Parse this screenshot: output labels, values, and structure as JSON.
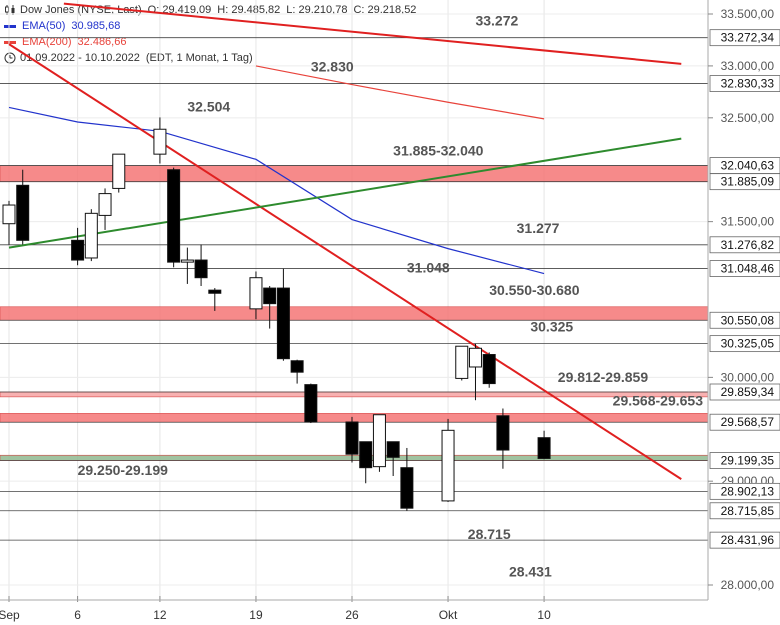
{
  "header": {
    "instrument": "Dow Jones (NYSE, Last)",
    "ohlc": {
      "o": "O: 29.419,09",
      "h": "H: 29.485,82",
      "l": "L: 29.210,78",
      "c": "C: 29.218,52"
    },
    "ema50": {
      "label": "EMA(50)",
      "value": "30.985,68",
      "color": "#2233cc"
    },
    "ema200": {
      "label": "EMA(200)",
      "value": "32.486,66",
      "color": "#e8433b"
    },
    "period": "01.09.2022 - 10.10.2022",
    "resolution": "(EDT, 1 Monat, 1 Tag)"
  },
  "chart_data": {
    "type": "candlestick",
    "ylim": [
      27800,
      33600
    ],
    "y_ticks": [
      {
        "value": 33500,
        "label": "33.500,00"
      },
      {
        "value": 33000,
        "label": "33.000,00"
      },
      {
        "value": 32500,
        "label": "32.500,00"
      },
      {
        "value": 31500,
        "label": "31.500,00"
      },
      {
        "value": 30000,
        "label": "30.000,00"
      },
      {
        "value": 29000,
        "label": "29.000,00"
      },
      {
        "value": 28000,
        "label": "28.000,00"
      }
    ],
    "x_ticks": [
      {
        "date": "2022-09-01",
        "label": "Sep"
      },
      {
        "date": "2022-09-06",
        "label": "6"
      },
      {
        "date": "2022-09-12",
        "label": "12"
      },
      {
        "date": "2022-09-19",
        "label": "19"
      },
      {
        "date": "2022-09-26",
        "label": "26"
      },
      {
        "date": "2022-10-03",
        "label": "Okt"
      },
      {
        "date": "2022-10-10",
        "label": "10"
      }
    ],
    "candles": [
      {
        "date": "2022-09-01",
        "o": 31480,
        "h": 31700,
        "l": 31280,
        "c": 31660
      },
      {
        "date": "2022-09-02",
        "o": 31850,
        "h": 32000,
        "l": 31280,
        "c": 31320
      },
      {
        "date": "2022-09-06",
        "o": 31320,
        "h": 31440,
        "l": 31080,
        "c": 31130
      },
      {
        "date": "2022-09-07",
        "o": 31150,
        "h": 31620,
        "l": 31120,
        "c": 31580
      },
      {
        "date": "2022-09-08",
        "o": 31560,
        "h": 31820,
        "l": 31420,
        "c": 31770
      },
      {
        "date": "2022-09-09",
        "o": 31820,
        "h": 32150,
        "l": 31780,
        "c": 32150
      },
      {
        "date": "2022-09-12",
        "o": 32150,
        "h": 32504,
        "l": 32060,
        "c": 32390
      },
      {
        "date": "2022-09-13",
        "o": 32000,
        "h": 32020,
        "l": 31060,
        "c": 31110
      },
      {
        "date": "2022-09-14",
        "o": 31110,
        "h": 31250,
        "l": 30900,
        "c": 31130
      },
      {
        "date": "2022-09-15",
        "o": 31130,
        "h": 31280,
        "l": 30880,
        "c": 30960
      },
      {
        "date": "2022-09-16",
        "o": 30840,
        "h": 30860,
        "l": 30640,
        "c": 30810
      },
      {
        "date": "2022-09-19",
        "o": 30660,
        "h": 31020,
        "l": 30560,
        "c": 30960
      },
      {
        "date": "2022-09-20",
        "o": 30860,
        "h": 30880,
        "l": 30470,
        "c": 30710
      },
      {
        "date": "2022-09-21",
        "o": 30860,
        "h": 31048,
        "l": 30160,
        "c": 30180
      },
      {
        "date": "2022-09-22",
        "o": 30160,
        "h": 30170,
        "l": 29940,
        "c": 30050
      },
      {
        "date": "2022-09-23",
        "o": 29930,
        "h": 29940,
        "l": 29560,
        "c": 29570
      },
      {
        "date": "2022-09-26",
        "o": 29570,
        "h": 29620,
        "l": 29180,
        "c": 29260
      },
      {
        "date": "2022-09-27",
        "o": 29380,
        "h": 29380,
        "l": 28980,
        "c": 29130
      },
      {
        "date": "2022-09-28",
        "o": 29140,
        "h": 29640,
        "l": 29090,
        "c": 29640
      },
      {
        "date": "2022-09-29",
        "o": 29380,
        "h": 29380,
        "l": 29050,
        "c": 29230
      },
      {
        "date": "2022-09-30",
        "o": 29130,
        "h": 29320,
        "l": 28715,
        "c": 28740
      },
      {
        "date": "2022-10-03",
        "o": 28810,
        "h": 29600,
        "l": 28800,
        "c": 29490
      },
      {
        "date": "2022-10-04",
        "o": 29990,
        "h": 30260,
        "l": 29970,
        "c": 30300
      },
      {
        "date": "2022-10-05",
        "o": 30100,
        "h": 30325,
        "l": 29780,
        "c": 30280
      },
      {
        "date": "2022-10-06",
        "o": 30220,
        "h": 30240,
        "l": 29900,
        "c": 29940
      },
      {
        "date": "2022-10-07",
        "o": 29630,
        "h": 29700,
        "l": 29120,
        "c": 29300
      },
      {
        "date": "2022-10-10",
        "o": 29419,
        "h": 29486,
        "l": 29211,
        "c": 29219
      }
    ],
    "ema50": [
      {
        "date": "2022-09-01",
        "v": 32600
      },
      {
        "date": "2022-09-06",
        "v": 32460
      },
      {
        "date": "2022-09-12",
        "v": 32370
      },
      {
        "date": "2022-09-19",
        "v": 32100
      },
      {
        "date": "2022-09-26",
        "v": 31520
      },
      {
        "date": "2022-10-03",
        "v": 31240
      },
      {
        "date": "2022-10-10",
        "v": 31000
      }
    ],
    "ema200": [
      {
        "date": "2022-09-19",
        "v": 33000
      },
      {
        "date": "2022-09-26",
        "v": 32820
      },
      {
        "date": "2022-10-03",
        "v": 32650
      },
      {
        "date": "2022-10-10",
        "v": 32490
      }
    ],
    "trendlines": [
      {
        "name": "downtrend-top",
        "color": "#e02020",
        "p1": {
          "date": "2022-09-05",
          "v": 33600
        },
        "p2": {
          "date": "2022-10-20",
          "v": 33020
        }
      },
      {
        "name": "downtrend-main",
        "color": "#e02020",
        "p1": {
          "date": "2022-09-01",
          "v": 33210
        },
        "p2": {
          "date": "2022-10-20",
          "v": 29020
        }
      },
      {
        "name": "uptrend-green",
        "color": "#2e8b2e",
        "p1": {
          "date": "2022-09-01",
          "v": 31250
        },
        "p2": {
          "date": "2022-10-20",
          "v": 32300
        }
      }
    ],
    "zones": [
      {
        "from": 31885,
        "to": 32040,
        "color": "#f47575"
      },
      {
        "from": 30550,
        "to": 30680,
        "color": "#f47575"
      },
      {
        "from": 29568,
        "to": 29653,
        "color": "#f47575"
      },
      {
        "from": 29812,
        "to": 29859,
        "color": "#f7a3a3"
      },
      {
        "from": 29199,
        "to": 29250,
        "color": "#8fb88f"
      }
    ],
    "levels": [
      {
        "value": 33272,
        "label": "33.272,34",
        "text": "33.272"
      },
      {
        "value": 32830,
        "label": "32.830,33",
        "text": "32.830"
      },
      {
        "value": 32040,
        "label": "32.040,63",
        "text": ""
      },
      {
        "value": 31885,
        "label": "31.885,09",
        "text": ""
      },
      {
        "value": 31277,
        "label": "31.276,82",
        "text": "31.277"
      },
      {
        "value": 31048,
        "label": "31.048,46",
        "text": ""
      },
      {
        "value": 30550,
        "label": "30.550,08",
        "text": ""
      },
      {
        "value": 30325,
        "label": "30.325,05",
        "text": "30.325"
      },
      {
        "value": 29859,
        "label": "29.859,34",
        "text": ""
      },
      {
        "value": 29568,
        "label": "29.568,57",
        "text": ""
      },
      {
        "value": 29199,
        "label": "29.199,35",
        "text": ""
      },
      {
        "value": 28902,
        "label": "28.902,13",
        "text": ""
      },
      {
        "value": 28715,
        "label": "28.715,85",
        "text": ""
      },
      {
        "value": 28432,
        "label": "28.431,96",
        "text": ""
      }
    ],
    "annotations": [
      {
        "text": "33.272"
      },
      {
        "text": "32.830"
      },
      {
        "text": "32.504"
      },
      {
        "text": "31.885-32.040"
      },
      {
        "text": "31.277"
      },
      {
        "text": "31.048"
      },
      {
        "text": "30.550-30.680"
      },
      {
        "text": "30.325"
      },
      {
        "text": "29.812-29.859"
      },
      {
        "text": "29.568-29.653"
      },
      {
        "text": "29.250-29.199"
      },
      {
        "text": "28.715"
      },
      {
        "text": "28.431"
      }
    ]
  }
}
